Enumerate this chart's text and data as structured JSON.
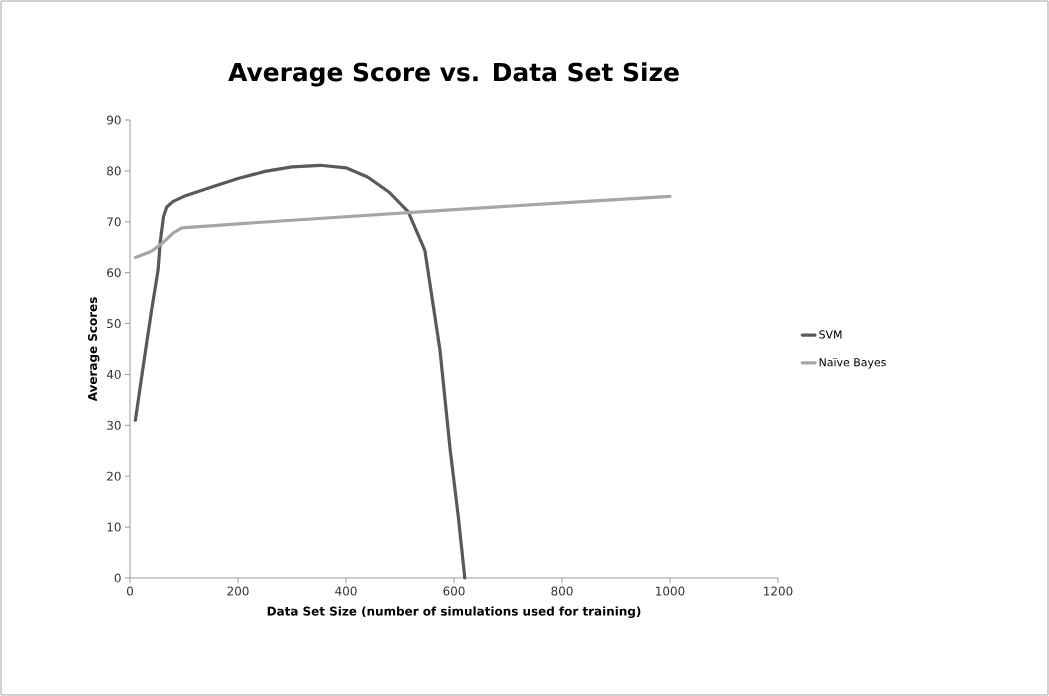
{
  "chart_data": {
    "type": "line",
    "title": "Average Score vs. Data Set Size",
    "xlabel": "Data Set Size (number of simulations used for training)",
    "ylabel": "Average Scores",
    "xlim": [
      0,
      1200
    ],
    "xticks": [
      0,
      200,
      400,
      600,
      800,
      1000,
      1200
    ],
    "ylim": [
      0,
      90
    ],
    "yticks": [
      0,
      10,
      20,
      30,
      40,
      50,
      60,
      70,
      80,
      90
    ],
    "grid": false,
    "legend": "right",
    "marker": "none",
    "line_style": "solid",
    "series": [
      {
        "name": "SVM",
        "color": "#595959",
        "x": [
          10,
          25,
          40,
          52,
          56,
          62,
          68,
          80,
          100,
          150,
          200,
          250,
          300,
          352,
          400,
          440,
          480,
          515,
          546,
          574,
          593,
          608,
          620
        ],
        "values": [
          31,
          42,
          52.6,
          60.5,
          66,
          71,
          72.9,
          74,
          75,
          76.8,
          78.5,
          79.9,
          80.8,
          81.1,
          80.6,
          78.8,
          75.8,
          72,
          64.4,
          44.8,
          25.1,
          12,
          0
        ]
      },
      {
        "name": "Naïve Bayes",
        "color": "#a6a6a6",
        "x": [
          10,
          40,
          60,
          80,
          96,
          200,
          400,
          600,
          800,
          1000
        ],
        "values": [
          63,
          64.2,
          65.8,
          67.8,
          68.8,
          69.6,
          71,
          72.4,
          73.7,
          75
        ]
      }
    ]
  }
}
